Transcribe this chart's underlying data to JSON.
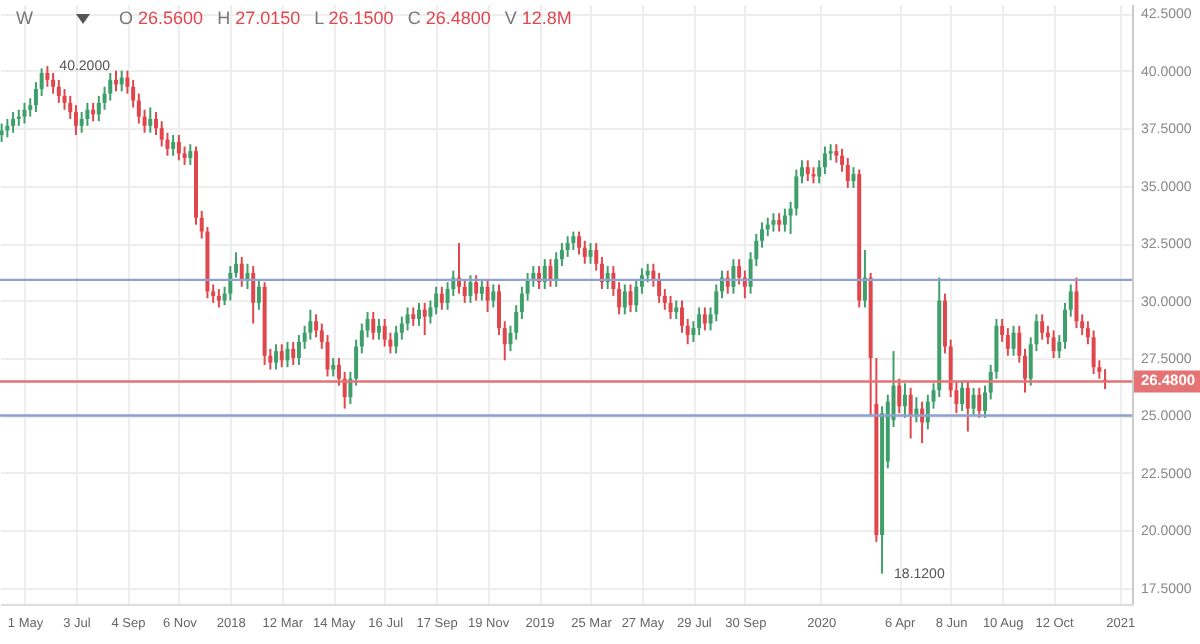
{
  "chart_data": {
    "type": "candlestick",
    "x": [
      "2017-04-03",
      "2017-04-10",
      "2017-04-17",
      "2017-04-24",
      "2017-05-01",
      "2017-05-08",
      "2017-05-15",
      "2017-05-22",
      "2017-05-29",
      "2017-06-05",
      "2017-06-12",
      "2017-06-19",
      "2017-06-26",
      "2017-07-03",
      "2017-07-10",
      "2017-07-17",
      "2017-07-24",
      "2017-07-31",
      "2017-08-07",
      "2017-08-14",
      "2017-08-21",
      "2017-08-28",
      "2017-09-04",
      "2017-09-11",
      "2017-09-18",
      "2017-09-25",
      "2017-10-02",
      "2017-10-09",
      "2017-10-16",
      "2017-10-23",
      "2017-10-30",
      "2017-11-06",
      "2017-11-13",
      "2017-11-20",
      "2017-11-27",
      "2017-12-04",
      "2017-12-11",
      "2017-12-18",
      "2017-12-25",
      "2018-01-01",
      "2018-01-08",
      "2018-01-15",
      "2018-01-22",
      "2018-01-29",
      "2018-02-05",
      "2018-02-12",
      "2018-02-19",
      "2018-02-26",
      "2018-03-05",
      "2018-03-12",
      "2018-03-19",
      "2018-03-26",
      "2018-04-02",
      "2018-04-09",
      "2018-04-16",
      "2018-04-23",
      "2018-04-30",
      "2018-05-07",
      "2018-05-14",
      "2018-05-21",
      "2018-05-28",
      "2018-06-04",
      "2018-06-11",
      "2018-06-18",
      "2018-06-25",
      "2018-07-02",
      "2018-07-09",
      "2018-07-16",
      "2018-07-23",
      "2018-07-30",
      "2018-08-06",
      "2018-08-13",
      "2018-08-20",
      "2018-08-27",
      "2018-09-03",
      "2018-09-10",
      "2018-09-17",
      "2018-09-24",
      "2018-10-01",
      "2018-10-08",
      "2018-10-15",
      "2018-10-22",
      "2018-10-29",
      "2018-11-05",
      "2018-11-12",
      "2018-11-19",
      "2018-11-26",
      "2018-12-03",
      "2018-12-10",
      "2018-12-17",
      "2018-12-24",
      "2018-12-31",
      "2019-01-07",
      "2019-01-14",
      "2019-01-21",
      "2019-01-28",
      "2019-02-04",
      "2019-02-11",
      "2019-02-18",
      "2019-02-25",
      "2019-03-04",
      "2019-03-11",
      "2019-03-18",
      "2019-03-25",
      "2019-04-01",
      "2019-04-08",
      "2019-04-15",
      "2019-04-22",
      "2019-04-29",
      "2019-05-06",
      "2019-05-13",
      "2019-05-20",
      "2019-05-27",
      "2019-06-03",
      "2019-06-10",
      "2019-06-17",
      "2019-06-24",
      "2019-07-01",
      "2019-07-08",
      "2019-07-15",
      "2019-07-22",
      "2019-07-29",
      "2019-08-05",
      "2019-08-12",
      "2019-08-19",
      "2019-08-26",
      "2019-09-02",
      "2019-09-09",
      "2019-09-16",
      "2019-09-23",
      "2019-09-30",
      "2019-10-07",
      "2019-10-14",
      "2019-10-21",
      "2019-10-28",
      "2019-11-04",
      "2019-11-11",
      "2019-11-18",
      "2019-11-25",
      "2019-12-02",
      "2019-12-09",
      "2019-12-16",
      "2019-12-23",
      "2019-12-30",
      "2020-01-06",
      "2020-01-13",
      "2020-01-20",
      "2020-01-27",
      "2020-02-03",
      "2020-02-10",
      "2020-02-17",
      "2020-02-24",
      "2020-03-02",
      "2020-03-09",
      "2020-03-16",
      "2020-03-23",
      "2020-03-30",
      "2020-04-06",
      "2020-04-13",
      "2020-04-20",
      "2020-04-27",
      "2020-05-04",
      "2020-05-11",
      "2020-05-18",
      "2020-05-25",
      "2020-06-01",
      "2020-06-08",
      "2020-06-15",
      "2020-06-22",
      "2020-06-29",
      "2020-07-06",
      "2020-07-13",
      "2020-07-20",
      "2020-07-27",
      "2020-08-03",
      "2020-08-10",
      "2020-08-17",
      "2020-08-24",
      "2020-08-31",
      "2020-09-07",
      "2020-09-14",
      "2020-09-21",
      "2020-09-28",
      "2020-10-05",
      "2020-10-12",
      "2020-10-19",
      "2020-10-26",
      "2020-11-02",
      "2020-11-09",
      "2020-11-16",
      "2020-11-23",
      "2020-11-30",
      "2020-12-07",
      "2020-12-14"
    ],
    "ohlc": [
      [
        37.2,
        37.7,
        36.9,
        37.4
      ],
      [
        37.4,
        37.9,
        37.1,
        37.6
      ],
      [
        37.6,
        38.2,
        37.3,
        37.9
      ],
      [
        37.9,
        38.3,
        37.6,
        38.0
      ],
      [
        38.0,
        38.6,
        37.7,
        38.3
      ],
      [
        38.3,
        38.8,
        38.0,
        38.5
      ],
      [
        38.5,
        39.5,
        38.2,
        39.2
      ],
      [
        39.2,
        40.1,
        38.9,
        39.9
      ],
      [
        39.9,
        40.2,
        39.3,
        39.6
      ],
      [
        39.6,
        39.9,
        39.0,
        39.3
      ],
      [
        39.3,
        39.6,
        38.6,
        38.9
      ],
      [
        38.9,
        39.2,
        38.3,
        38.6
      ],
      [
        38.6,
        38.9,
        37.9,
        38.2
      ],
      [
        38.2,
        38.5,
        37.2,
        37.6
      ],
      [
        37.6,
        38.2,
        37.3,
        37.9
      ],
      [
        37.9,
        38.6,
        37.6,
        38.3
      ],
      [
        38.3,
        38.6,
        37.8,
        38.1
      ],
      [
        38.1,
        38.9,
        37.8,
        38.6
      ],
      [
        38.6,
        39.3,
        38.3,
        39.0
      ],
      [
        39.0,
        39.9,
        38.7,
        39.6
      ],
      [
        39.6,
        40.0,
        39.1,
        39.4
      ],
      [
        39.4,
        40.0,
        39.1,
        39.7
      ],
      [
        39.7,
        40.0,
        39.0,
        39.3
      ],
      [
        39.3,
        39.6,
        38.4,
        38.7
      ],
      [
        38.7,
        39.0,
        37.7,
        38.0
      ],
      [
        38.0,
        38.3,
        37.3,
        37.6
      ],
      [
        37.6,
        38.4,
        37.3,
        37.9
      ],
      [
        37.9,
        38.2,
        37.2,
        37.5
      ],
      [
        37.5,
        37.8,
        36.7,
        37.0
      ],
      [
        37.0,
        37.3,
        36.3,
        36.6
      ],
      [
        36.6,
        37.2,
        36.3,
        36.9
      ],
      [
        36.9,
        37.2,
        36.1,
        36.4
      ],
      [
        36.4,
        36.7,
        35.9,
        36.2
      ],
      [
        36.2,
        36.8,
        35.9,
        36.5
      ],
      [
        36.5,
        36.7,
        33.3,
        33.6
      ],
      [
        33.6,
        33.9,
        32.7,
        33.0
      ],
      [
        33.0,
        33.2,
        30.1,
        30.4
      ],
      [
        30.4,
        30.7,
        29.9,
        30.2
      ],
      [
        30.2,
        30.5,
        29.7,
        30.0
      ],
      [
        30.0,
        30.6,
        29.8,
        30.3
      ],
      [
        30.3,
        31.5,
        30.0,
        31.2
      ],
      [
        31.2,
        32.1,
        31.0,
        31.6
      ],
      [
        31.6,
        31.9,
        30.6,
        30.9
      ],
      [
        30.9,
        31.6,
        30.5,
        31.2
      ],
      [
        31.2,
        31.5,
        29.0,
        29.9
      ],
      [
        29.9,
        30.9,
        29.6,
        30.6
      ],
      [
        30.6,
        30.8,
        27.2,
        27.6
      ],
      [
        27.6,
        27.9,
        27.0,
        27.3
      ],
      [
        27.3,
        28.1,
        27.0,
        27.8
      ],
      [
        27.8,
        28.1,
        27.1,
        27.4
      ],
      [
        27.4,
        28.2,
        27.1,
        27.9
      ],
      [
        27.9,
        28.2,
        27.2,
        27.5
      ],
      [
        27.5,
        28.5,
        27.2,
        28.2
      ],
      [
        28.2,
        28.9,
        27.9,
        28.6
      ],
      [
        28.6,
        29.6,
        28.3,
        29.1
      ],
      [
        29.1,
        29.4,
        28.4,
        28.7
      ],
      [
        28.7,
        29.0,
        27.9,
        28.2
      ],
      [
        28.2,
        28.5,
        26.7,
        27.0
      ],
      [
        27.0,
        27.5,
        26.7,
        27.2
      ],
      [
        27.2,
        27.5,
        26.3,
        26.6
      ],
      [
        26.6,
        26.9,
        25.3,
        25.8
      ],
      [
        25.8,
        26.9,
        25.5,
        26.6
      ],
      [
        26.6,
        28.3,
        26.3,
        28.0
      ],
      [
        28.0,
        29.0,
        27.7,
        28.7
      ],
      [
        28.7,
        29.5,
        28.4,
        29.2
      ],
      [
        29.2,
        29.5,
        28.3,
        28.6
      ],
      [
        28.6,
        29.2,
        28.3,
        28.9
      ],
      [
        28.9,
        29.2,
        28.0,
        28.3
      ],
      [
        28.3,
        28.6,
        27.7,
        28.0
      ],
      [
        28.0,
        28.9,
        27.7,
        28.6
      ],
      [
        28.6,
        29.3,
        28.3,
        29.0
      ],
      [
        29.0,
        29.7,
        28.7,
        29.4
      ],
      [
        29.4,
        29.7,
        28.9,
        29.2
      ],
      [
        29.2,
        29.9,
        28.9,
        29.6
      ],
      [
        29.6,
        29.9,
        28.5,
        29.3
      ],
      [
        29.3,
        30.0,
        29.0,
        29.7
      ],
      [
        29.7,
        30.6,
        29.4,
        30.3
      ],
      [
        30.3,
        30.6,
        29.6,
        29.9
      ],
      [
        29.9,
        30.8,
        29.6,
        30.5
      ],
      [
        30.5,
        31.3,
        30.2,
        31.0
      ],
      [
        31.0,
        32.5,
        30.3,
        30.6
      ],
      [
        30.6,
        30.9,
        29.9,
        30.2
      ],
      [
        30.2,
        31.1,
        29.9,
        30.8
      ],
      [
        30.8,
        31.1,
        30.0,
        30.3
      ],
      [
        30.3,
        30.9,
        30.0,
        30.6
      ],
      [
        30.6,
        30.9,
        29.5,
        30.0
      ],
      [
        30.0,
        30.7,
        29.7,
        30.4
      ],
      [
        30.4,
        30.7,
        28.5,
        28.8
      ],
      [
        28.8,
        29.1,
        27.4,
        28.1
      ],
      [
        28.1,
        28.9,
        27.8,
        28.6
      ],
      [
        28.6,
        29.8,
        28.3,
        29.5
      ],
      [
        29.5,
        30.6,
        29.2,
        30.3
      ],
      [
        30.3,
        31.2,
        30.0,
        30.9
      ],
      [
        30.9,
        31.5,
        30.6,
        31.2
      ],
      [
        31.2,
        31.5,
        30.5,
        30.8
      ],
      [
        30.8,
        31.8,
        30.5,
        31.5
      ],
      [
        31.5,
        31.8,
        30.6,
        30.9
      ],
      [
        30.9,
        32.1,
        30.6,
        31.8
      ],
      [
        31.8,
        32.5,
        31.5,
        32.2
      ],
      [
        32.2,
        32.8,
        31.9,
        32.5
      ],
      [
        32.5,
        33.0,
        32.2,
        32.8
      ],
      [
        32.8,
        33.0,
        32.0,
        32.3
      ],
      [
        32.3,
        32.6,
        31.6,
        31.9
      ],
      [
        31.9,
        32.5,
        31.6,
        32.2
      ],
      [
        32.2,
        32.5,
        31.3,
        31.6
      ],
      [
        31.6,
        31.9,
        30.5,
        30.8
      ],
      [
        30.8,
        31.5,
        30.5,
        31.2
      ],
      [
        31.2,
        31.5,
        30.2,
        30.5
      ],
      [
        30.5,
        30.8,
        29.4,
        29.7
      ],
      [
        29.7,
        30.7,
        29.4,
        30.4
      ],
      [
        30.4,
        30.7,
        29.5,
        29.8
      ],
      [
        29.8,
        30.9,
        29.5,
        30.6
      ],
      [
        30.6,
        31.4,
        30.3,
        31.1
      ],
      [
        31.1,
        31.6,
        30.8,
        31.3
      ],
      [
        31.3,
        31.6,
        30.6,
        30.9
      ],
      [
        30.9,
        31.2,
        29.9,
        30.2
      ],
      [
        30.2,
        30.5,
        29.6,
        29.9
      ],
      [
        29.9,
        30.2,
        29.2,
        29.5
      ],
      [
        29.5,
        30.0,
        29.2,
        29.7
      ],
      [
        29.7,
        30.0,
        28.6,
        28.9
      ],
      [
        28.9,
        29.2,
        28.1,
        28.5
      ],
      [
        28.5,
        29.1,
        28.2,
        28.8
      ],
      [
        28.8,
        29.7,
        28.5,
        29.4
      ],
      [
        29.4,
        29.7,
        28.7,
        29.0
      ],
      [
        29.0,
        29.7,
        28.7,
        29.4
      ],
      [
        29.4,
        30.7,
        29.1,
        30.4
      ],
      [
        30.4,
        31.3,
        30.1,
        31.0
      ],
      [
        31.0,
        31.3,
        30.3,
        30.6
      ],
      [
        30.6,
        31.8,
        30.3,
        31.5
      ],
      [
        31.5,
        31.8,
        30.7,
        31.0
      ],
      [
        31.0,
        31.3,
        30.1,
        30.6
      ],
      [
        30.6,
        32.1,
        30.3,
        31.8
      ],
      [
        31.8,
        32.9,
        31.5,
        32.6
      ],
      [
        32.6,
        33.4,
        32.3,
        33.1
      ],
      [
        33.1,
        33.6,
        32.8,
        33.3
      ],
      [
        33.3,
        33.8,
        33.0,
        33.5
      ],
      [
        33.5,
        33.8,
        33.0,
        33.3
      ],
      [
        33.3,
        34.0,
        33.0,
        33.7
      ],
      [
        33.7,
        34.3,
        32.9,
        34.0
      ],
      [
        34.0,
        35.7,
        33.7,
        35.4
      ],
      [
        35.4,
        36.1,
        35.1,
        35.8
      ],
      [
        35.8,
        36.1,
        35.2,
        35.5
      ],
      [
        35.5,
        35.8,
        35.1,
        35.4
      ],
      [
        35.4,
        36.1,
        35.1,
        35.8
      ],
      [
        35.8,
        36.7,
        35.5,
        36.4
      ],
      [
        36.4,
        36.8,
        36.1,
        36.5
      ],
      [
        36.5,
        36.8,
        36.0,
        36.3
      ],
      [
        36.3,
        36.6,
        35.6,
        35.9
      ],
      [
        35.9,
        36.2,
        34.9,
        35.2
      ],
      [
        35.2,
        35.8,
        34.9,
        35.5
      ],
      [
        35.5,
        35.7,
        29.7,
        30.0
      ],
      [
        30.0,
        32.2,
        29.7,
        31.0
      ],
      [
        31.0,
        31.2,
        25.0,
        27.5
      ],
      [
        25.5,
        27.5,
        19.5,
        19.8
      ],
      [
        19.8,
        25.4,
        18.12,
        25.1
      ],
      [
        23.0,
        25.9,
        22.7,
        25.6
      ],
      [
        24.8,
        27.8,
        24.5,
        26.3
      ],
      [
        26.3,
        26.6,
        25.1,
        25.4
      ],
      [
        25.4,
        26.4,
        24.9,
        25.9
      ],
      [
        25.9,
        26.2,
        24.0,
        25.0
      ],
      [
        25.0,
        25.8,
        24.7,
        25.3
      ],
      [
        25.3,
        25.6,
        23.8,
        24.7
      ],
      [
        24.7,
        25.9,
        24.4,
        25.6
      ],
      [
        25.6,
        26.4,
        25.3,
        26.1
      ],
      [
        26.1,
        31.0,
        25.8,
        30.0
      ],
      [
        30.0,
        30.3,
        27.7,
        28.0
      ],
      [
        28.0,
        28.3,
        25.8,
        26.1
      ],
      [
        26.1,
        26.5,
        25.1,
        25.5
      ],
      [
        25.5,
        26.5,
        25.2,
        26.2
      ],
      [
        26.2,
        26.5,
        24.3,
        25.3
      ],
      [
        25.3,
        26.2,
        25.0,
        25.9
      ],
      [
        25.9,
        26.2,
        24.9,
        25.2
      ],
      [
        25.2,
        26.3,
        24.9,
        26.0
      ],
      [
        26.0,
        27.2,
        25.7,
        26.9
      ],
      [
        26.9,
        29.2,
        26.6,
        28.9
      ],
      [
        28.9,
        29.2,
        28.2,
        28.5
      ],
      [
        28.5,
        28.8,
        27.6,
        27.9
      ],
      [
        27.9,
        28.9,
        27.6,
        28.6
      ],
      [
        28.6,
        28.9,
        27.3,
        27.6
      ],
      [
        27.6,
        27.9,
        26.0,
        26.6
      ],
      [
        26.6,
        28.4,
        26.3,
        28.1
      ],
      [
        28.1,
        29.4,
        27.8,
        29.1
      ],
      [
        29.1,
        29.4,
        28.3,
        28.6
      ],
      [
        28.6,
        28.9,
        28.1,
        28.4
      ],
      [
        28.4,
        28.7,
        27.5,
        27.8
      ],
      [
        27.8,
        28.5,
        27.5,
        28.2
      ],
      [
        28.2,
        29.9,
        27.9,
        29.6
      ],
      [
        29.6,
        30.7,
        29.3,
        30.4
      ],
      [
        30.4,
        31.0,
        28.8,
        29.1
      ],
      [
        29.1,
        29.4,
        28.5,
        28.8
      ],
      [
        28.8,
        29.1,
        28.1,
        28.4
      ],
      [
        28.4,
        28.7,
        26.8,
        27.1
      ],
      [
        27.1,
        27.4,
        26.6,
        26.9
      ],
      [
        26.56,
        27.015,
        26.15,
        26.48
      ]
    ],
    "xlim": [
      "2017-04-01",
      "2021-01-16"
    ],
    "xticks": [
      {
        "value": "2017-05-01",
        "label": "1 May"
      },
      {
        "value": "2017-07-03",
        "label": "3 Jul"
      },
      {
        "value": "2017-09-04",
        "label": "4 Sep"
      },
      {
        "value": "2017-11-06",
        "label": "6 Nov"
      },
      {
        "value": "2018-01-08",
        "label": "2018"
      },
      {
        "value": "2018-03-12",
        "label": "12 Mar"
      },
      {
        "value": "2018-05-14",
        "label": "14 May"
      },
      {
        "value": "2018-07-16",
        "label": "16 Jul"
      },
      {
        "value": "2018-09-17",
        "label": "17 Sep"
      },
      {
        "value": "2018-11-19",
        "label": "19 Nov"
      },
      {
        "value": "2019-01-21",
        "label": "2019"
      },
      {
        "value": "2019-03-25",
        "label": "25 Mar"
      },
      {
        "value": "2019-05-27",
        "label": "27 May"
      },
      {
        "value": "2019-07-29",
        "label": "29 Jul"
      },
      {
        "value": "2019-09-30",
        "label": "30 Sep"
      },
      {
        "value": "2020-01-01",
        "label": "2020"
      },
      {
        "value": "2020-04-06",
        "label": "6 Apr"
      },
      {
        "value": "2020-06-08",
        "label": "8 Jun"
      },
      {
        "value": "2020-08-10",
        "label": "10 Aug"
      },
      {
        "value": "2020-10-12",
        "label": "12 Oct"
      },
      {
        "value": "2021-01-01",
        "label": "2021"
      }
    ],
    "ylim": [
      16.8,
      42.9
    ],
    "yticks": [
      {
        "value": 17.5,
        "label": "17.5000"
      },
      {
        "value": 20,
        "label": "20.0000"
      },
      {
        "value": 22.5,
        "label": "22.5000"
      },
      {
        "value": 25,
        "label": "25.0000"
      },
      {
        "value": 27.5,
        "label": "27.5000"
      },
      {
        "value": 30,
        "label": "30.0000"
      },
      {
        "value": 32.5,
        "label": "32.5000"
      },
      {
        "value": 35,
        "label": "35.0000"
      },
      {
        "value": 37.5,
        "label": "37.5000"
      },
      {
        "value": 40,
        "label": "40.0000"
      },
      {
        "value": 42.5,
        "label": "42.5000"
      }
    ],
    "ref_lines": [
      {
        "axis": "y",
        "value": 30.9,
        "label": null,
        "color": "#8ea2cf"
      },
      {
        "axis": "y",
        "value": 25,
        "label": null,
        "color": "#8ea2cf"
      },
      {
        "axis": "y",
        "value": 26.48,
        "label": "26.4800",
        "color": "#e57373"
      }
    ],
    "annotations": [
      "W",
      "O 26.5600",
      "H 27.0150",
      "L 26.1500",
      "C 26.4800",
      "V 12.8M",
      {
        "text": "40.2000",
        "x": "2017-05-29",
        "y": 40.2
      },
      {
        "text": "18.1200",
        "x": "2020-03-16",
        "y": 18.12
      }
    ],
    "grid": true
  }
}
